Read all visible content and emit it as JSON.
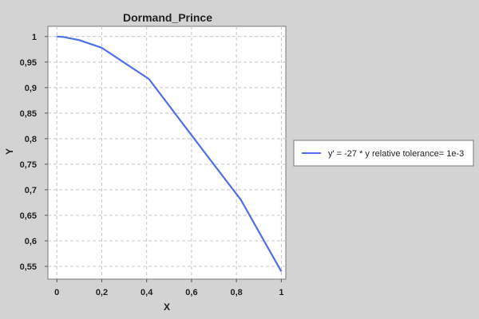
{
  "chart_data": {
    "type": "line",
    "title": "Dormand_Prince",
    "xlabel": "X",
    "ylabel": "Y",
    "xlim": [
      -0.04,
      1.02
    ],
    "ylim": [
      0.525,
      1.02
    ],
    "x_ticks": [
      0,
      0.2,
      0.4,
      0.6,
      0.8,
      1
    ],
    "x_tick_labels": [
      "0",
      "0,2",
      "0,4",
      "0,6",
      "0,8",
      "1"
    ],
    "y_ticks": [
      0.55,
      0.6,
      0.65,
      0.7,
      0.75,
      0.8,
      0.85,
      0.9,
      0.95,
      1
    ],
    "y_tick_labels": [
      "0,55",
      "0,6",
      "0,65",
      "0,7",
      "0,75",
      "0,8",
      "0,85",
      "0,9",
      "0,95",
      "1"
    ],
    "grid": true,
    "legend_position": "right",
    "series": [
      {
        "name": "y' = -27 * y relative tolerance= 1e-3",
        "color": "#4f6fe6",
        "x": [
          0,
          0.03,
          0.1,
          0.2,
          0.31,
          0.41,
          0.61,
          0.82,
          1.0
        ],
        "y": [
          1.0,
          0.999,
          0.993,
          0.978,
          0.946,
          0.917,
          0.801,
          0.68,
          0.54
        ]
      }
    ]
  }
}
